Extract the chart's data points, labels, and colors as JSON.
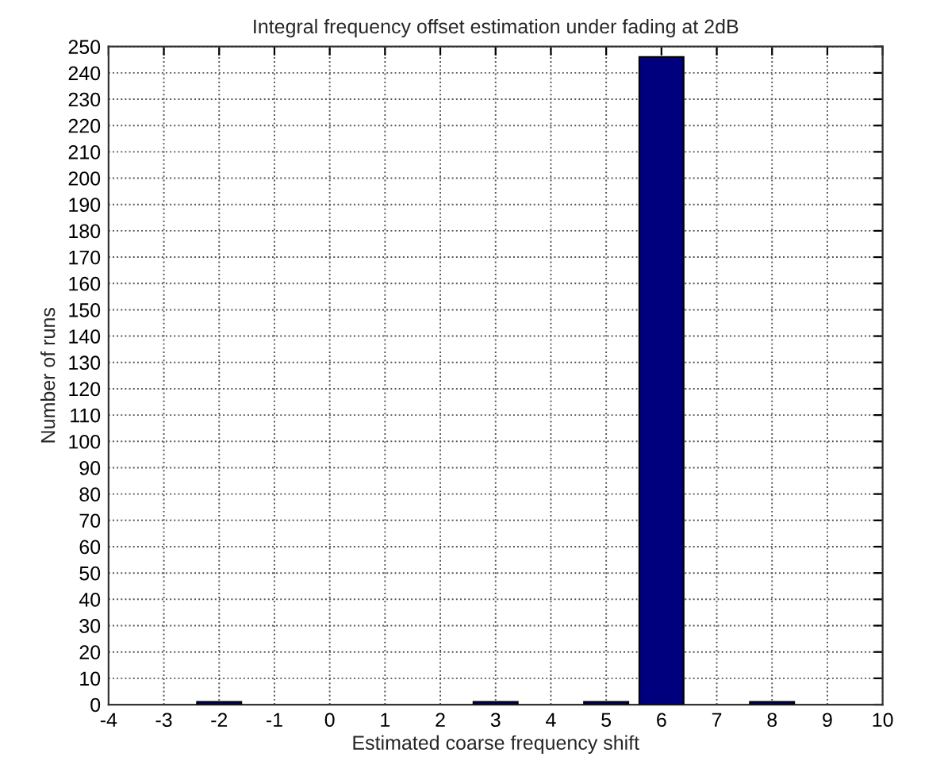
{
  "chart_data": {
    "type": "bar",
    "title": "Integral frequency offset estimation under fading at 2dB",
    "xlabel": "Estimated coarse frequency shift",
    "ylabel": "Number of runs",
    "x": [
      -2,
      3,
      5,
      6,
      8
    ],
    "values": [
      1,
      1,
      1,
      246,
      1
    ],
    "color": "#00007f",
    "xlim": [
      -4,
      10
    ],
    "xticks": [
      -4,
      -3,
      -2,
      -1,
      0,
      1,
      2,
      3,
      4,
      5,
      6,
      7,
      8,
      9,
      10
    ],
    "ylim": [
      0,
      250
    ],
    "yticks": [
      0,
      10,
      20,
      30,
      40,
      50,
      60,
      70,
      80,
      90,
      100,
      110,
      120,
      130,
      140,
      150,
      160,
      170,
      180,
      190,
      200,
      210,
      220,
      230,
      240,
      250
    ],
    "grid": true
  }
}
